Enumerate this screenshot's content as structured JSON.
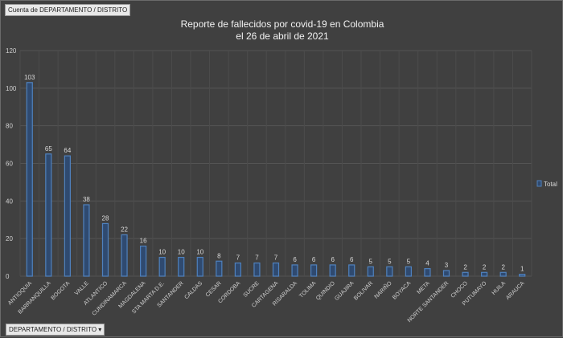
{
  "pivot": {
    "value_field": "Cuenta de DEPARTAMENTO / DISTRITO",
    "axis_field": "DEPARTAMENTO / DISTRITO",
    "dropdown_icon": "triangle-down-icon"
  },
  "chart_data": {
    "type": "bar",
    "title": [
      "Reporte de fallecidos por covid-19 en Colombia",
      "el 26 de abril de 2021"
    ],
    "categories": [
      "ANTIOQUIA",
      "BARRANQUILLA",
      "BOGOTA",
      "VALLE",
      "ATLANTICO",
      "CUNDINAMARCA",
      "MAGDALENA",
      "STA MARTA D.E.",
      "SANTANDER",
      "CALDAS",
      "CESAR",
      "CORDOBA",
      "SUCRE",
      "CARTAGENA",
      "RISARALDA",
      "TOLIMA",
      "QUINDIO",
      "GUAJIRA",
      "BOLIVAR",
      "NARIÑO",
      "BOYACA",
      "META",
      "NORTE SANTANDER",
      "CHOCO",
      "PUTUMAYO",
      "HUILA",
      "ARAUCA"
    ],
    "series": [
      {
        "name": "Total",
        "values": [
          103,
          65,
          64,
          38,
          28,
          22,
          16,
          10,
          10,
          10,
          8,
          7,
          7,
          7,
          6,
          6,
          6,
          6,
          5,
          5,
          5,
          4,
          3,
          2,
          2,
          2,
          1
        ]
      }
    ],
    "ylim": [
      0,
      120
    ],
    "yticks": [
      0,
      20,
      40,
      60,
      80,
      100,
      120
    ],
    "grid": true,
    "legend": "right",
    "colors": {
      "bar_fill": "#2f4a70",
      "bar_stroke": "#4f81bd"
    }
  }
}
